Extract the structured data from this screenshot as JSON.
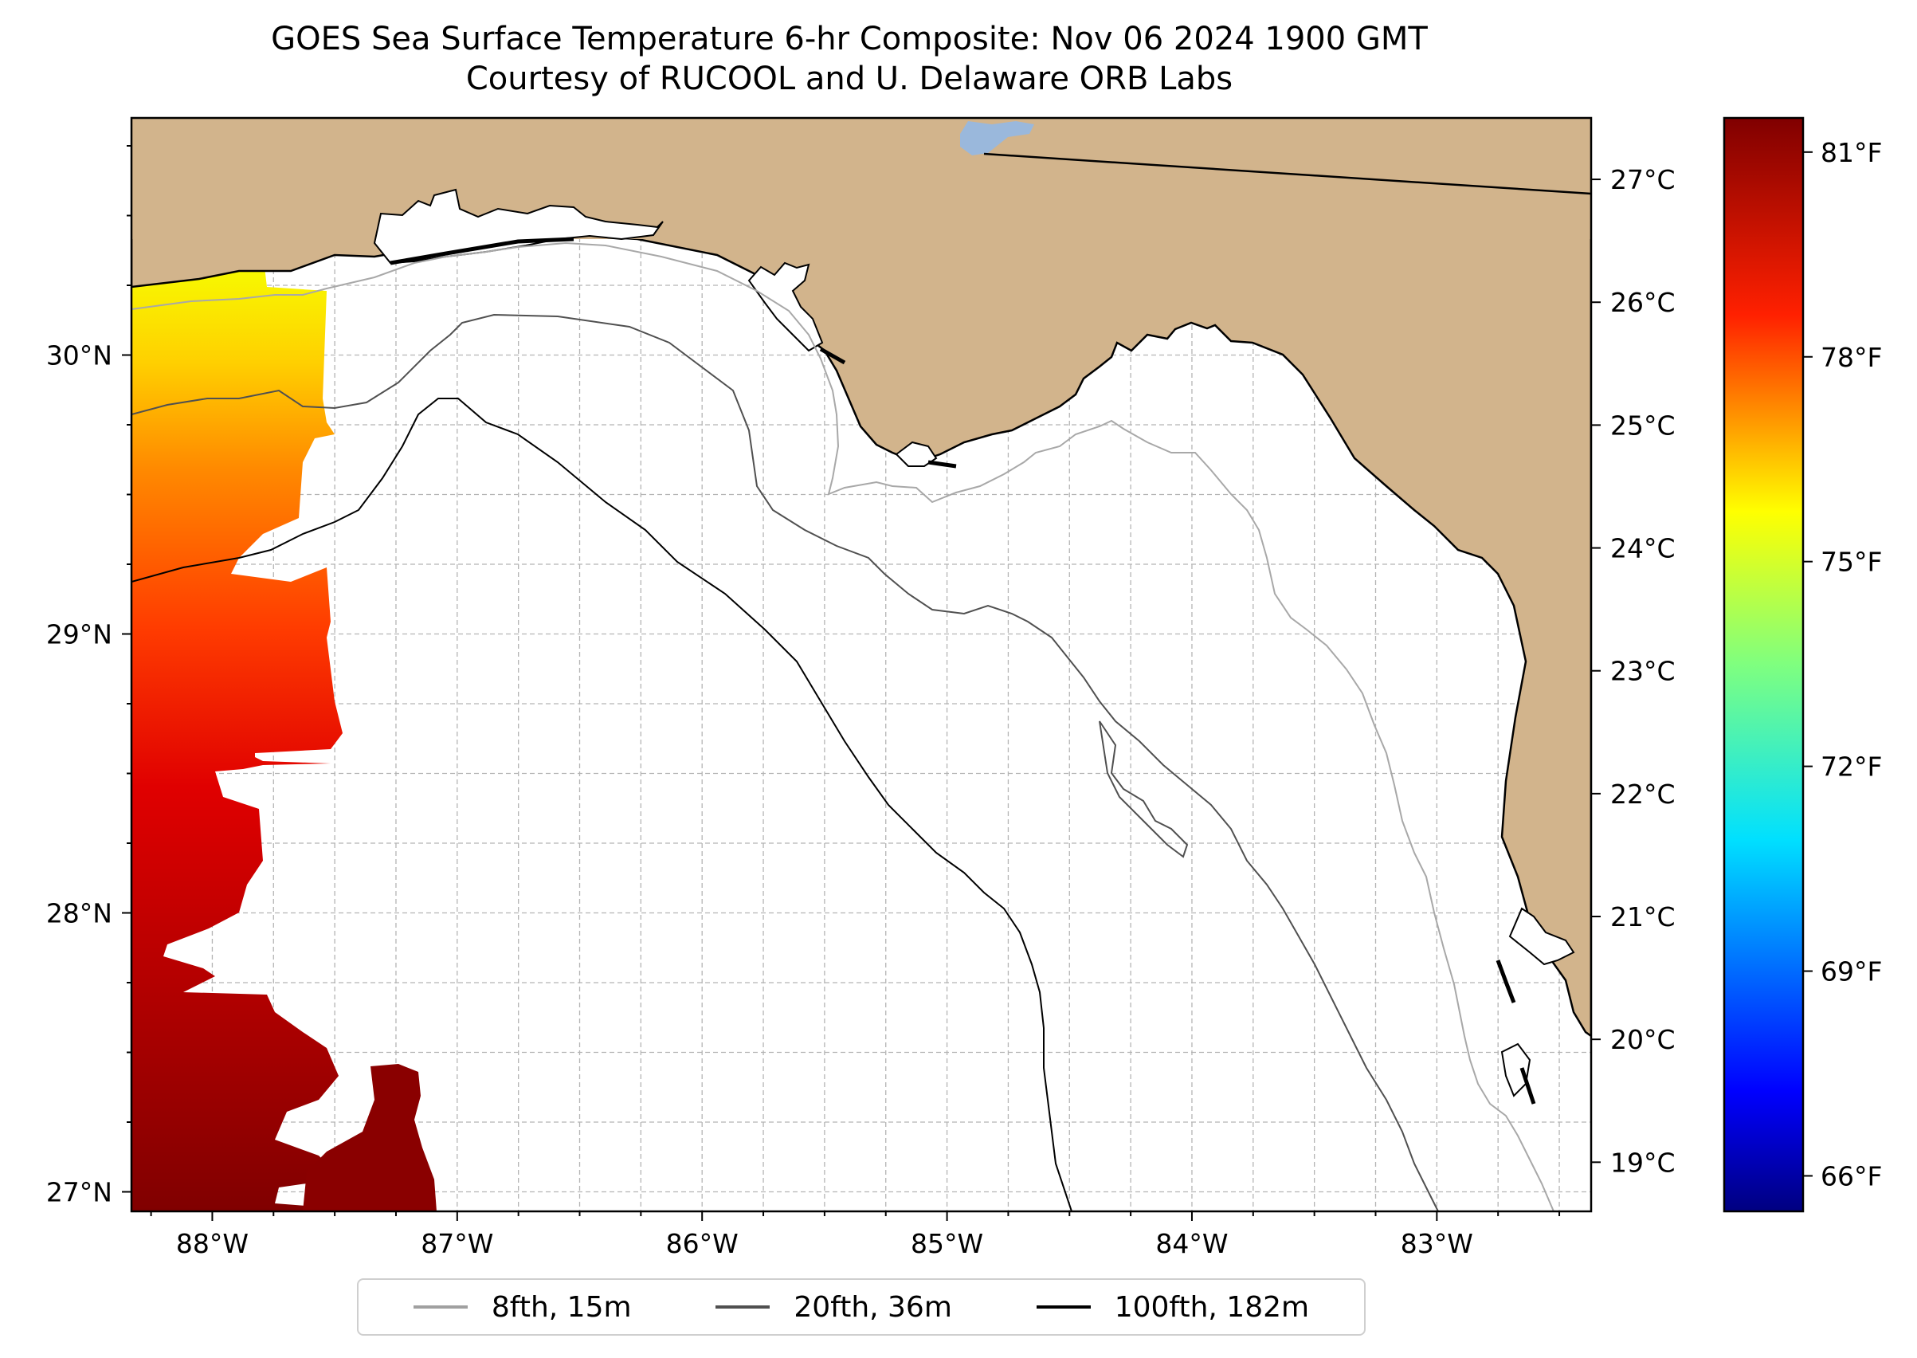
{
  "title": {
    "line1": "GOES Sea Surface Temperature 6-hr Composite: Nov 06 2024 1900 GMT",
    "line2": "Courtesy of RUCOOL and U. Delaware ORB Labs"
  },
  "map": {
    "lon_range": [
      -88.33,
      -82.37
    ],
    "lat_range": [
      26.93,
      30.85
    ],
    "lon_ticks": [
      {
        "value": -88,
        "label": "88°W"
      },
      {
        "value": -87,
        "label": "87°W"
      },
      {
        "value": -86,
        "label": "86°W"
      },
      {
        "value": -85,
        "label": "85°W"
      },
      {
        "value": -84,
        "label": "84°W"
      },
      {
        "value": -83,
        "label": "83°W"
      }
    ],
    "lat_ticks": [
      {
        "value": 27,
        "label": "27°N"
      },
      {
        "value": 28,
        "label": "28°N"
      },
      {
        "value": 29,
        "label": "29°N"
      },
      {
        "value": 30,
        "label": "30°N"
      }
    ],
    "gridlines": true,
    "colors": {
      "land": "#d2b48c",
      "ocean": "#ffffff",
      "lake": "#9ab8dc",
      "grid": "#b4b4b4"
    }
  },
  "colorbar": {
    "colormap": "jet",
    "celsius_range": [
      18.6,
      27.5
    ],
    "celsius_ticks": [
      {
        "value": 19,
        "label": "19°C"
      },
      {
        "value": 20,
        "label": "20°C"
      },
      {
        "value": 21,
        "label": "21°C"
      },
      {
        "value": 22,
        "label": "22°C"
      },
      {
        "value": 23,
        "label": "23°C"
      },
      {
        "value": 24,
        "label": "24°C"
      },
      {
        "value": 25,
        "label": "25°C"
      },
      {
        "value": 26,
        "label": "26°C"
      },
      {
        "value": 27,
        "label": "27°C"
      }
    ],
    "fahrenheit_ticks": [
      {
        "value": 66,
        "label": "66°F"
      },
      {
        "value": 69,
        "label": "69°F"
      },
      {
        "value": 72,
        "label": "72°F"
      },
      {
        "value": 75,
        "label": "75°F"
      },
      {
        "value": 78,
        "label": "78°F"
      },
      {
        "value": 81,
        "label": "81°F"
      }
    ]
  },
  "legend": [
    {
      "label": "8fth, 15m",
      "color": "#a0a0a0"
    },
    {
      "label": "20fth, 36m",
      "color": "#505050"
    },
    {
      "label": "100fth, 182m",
      "color": "#000000"
    }
  ]
}
